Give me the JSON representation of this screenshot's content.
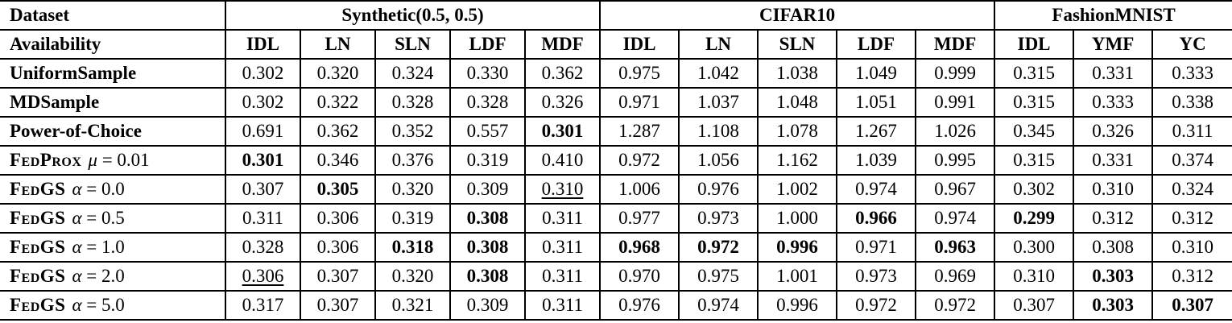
{
  "table": {
    "colors": {
      "border": "#000000",
      "text": "#000000",
      "background": "#ffffff"
    },
    "header": {
      "dataset_label": "Dataset",
      "availability_label": "Availability",
      "groups": [
        {
          "label": "Synthetic(0.5, 0.5)",
          "span": 5
        },
        {
          "label": "CIFAR10",
          "span": 5
        },
        {
          "label": "FashionMNIST",
          "span": 3
        }
      ],
      "sub_headers": [
        "IDL",
        "LN",
        "SLN",
        "LDF",
        "MDF",
        "IDL",
        "LN",
        "SLN",
        "LDF",
        "MDF",
        "IDL",
        "YMF",
        "YC"
      ]
    },
    "rows": [
      {
        "label": "UniformSample",
        "smallcaps": false,
        "math_sym": "",
        "math_val": "",
        "values": [
          "0.302",
          "0.320",
          "0.324",
          "0.330",
          "0.362",
          "0.975",
          "1.042",
          "1.038",
          "1.049",
          "0.999",
          "0.315",
          "0.331",
          "0.333"
        ],
        "styles": [
          "",
          "",
          "",
          "",
          "",
          "",
          "",
          "",
          "",
          "",
          "",
          "",
          ""
        ]
      },
      {
        "label": "MDSample",
        "smallcaps": false,
        "math_sym": "",
        "math_val": "",
        "values": [
          "0.302",
          "0.322",
          "0.328",
          "0.328",
          "0.326",
          "0.971",
          "1.037",
          "1.048",
          "1.051",
          "0.991",
          "0.315",
          "0.333",
          "0.338"
        ],
        "styles": [
          "",
          "",
          "",
          "",
          "",
          "",
          "",
          "",
          "",
          "",
          "",
          "",
          ""
        ]
      },
      {
        "label": "Power-of-Choice",
        "smallcaps": false,
        "math_sym": "",
        "math_val": "",
        "values": [
          "0.691",
          "0.362",
          "0.352",
          "0.557",
          "0.301",
          "1.287",
          "1.108",
          "1.078",
          "1.267",
          "1.026",
          "0.345",
          "0.326",
          "0.311"
        ],
        "styles": [
          "",
          "",
          "",
          "",
          "b",
          "",
          "",
          "",
          "",
          "",
          "",
          "",
          ""
        ]
      },
      {
        "label": "FedProx",
        "smallcaps": true,
        "math_sym": "μ",
        "math_val": "0.01",
        "values": [
          "0.301",
          "0.346",
          "0.376",
          "0.319",
          "0.410",
          "0.972",
          "1.056",
          "1.162",
          "1.039",
          "0.995",
          "0.315",
          "0.331",
          "0.374"
        ],
        "styles": [
          "b",
          "",
          "",
          "",
          "",
          "",
          "",
          "",
          "",
          "",
          "",
          "",
          ""
        ]
      },
      {
        "label": "FedGS",
        "smallcaps": true,
        "math_sym": "α",
        "math_val": "0.0",
        "values": [
          "0.307",
          "0.305",
          "0.320",
          "0.309",
          "0.310",
          "1.006",
          "0.976",
          "1.002",
          "0.974",
          "0.967",
          "0.302",
          "0.310",
          "0.324"
        ],
        "styles": [
          "",
          "b",
          "",
          "",
          "u",
          "",
          "",
          "",
          "",
          "",
          "",
          "",
          ""
        ]
      },
      {
        "label": "FedGS",
        "smallcaps": true,
        "math_sym": "α",
        "math_val": "0.5",
        "values": [
          "0.311",
          "0.306",
          "0.319",
          "0.308",
          "0.311",
          "0.977",
          "0.973",
          "1.000",
          "0.966",
          "0.974",
          "0.299",
          "0.312",
          "0.312"
        ],
        "styles": [
          "",
          "",
          "",
          "b",
          "",
          "",
          "",
          "",
          "b",
          "",
          "b",
          "",
          ""
        ]
      },
      {
        "label": "FedGS",
        "smallcaps": true,
        "math_sym": "α",
        "math_val": "1.0",
        "values": [
          "0.328",
          "0.306",
          "0.318",
          "0.308",
          "0.311",
          "0.968",
          "0.972",
          "0.996",
          "0.971",
          "0.963",
          "0.300",
          "0.308",
          "0.310"
        ],
        "styles": [
          "",
          "",
          "b",
          "b",
          "",
          "b",
          "b",
          "b",
          "",
          "b",
          "",
          "",
          ""
        ]
      },
      {
        "label": "FedGS",
        "smallcaps": true,
        "math_sym": "α",
        "math_val": "2.0",
        "values": [
          "0.306",
          "0.307",
          "0.320",
          "0.308",
          "0.311",
          "0.970",
          "0.975",
          "1.001",
          "0.973",
          "0.969",
          "0.310",
          "0.303",
          "0.312"
        ],
        "styles": [
          "u",
          "",
          "",
          "b",
          "",
          "",
          "",
          "",
          "",
          "",
          "",
          "b",
          ""
        ]
      },
      {
        "label": "FedGS",
        "smallcaps": true,
        "math_sym": "α",
        "math_val": "5.0",
        "values": [
          "0.317",
          "0.307",
          "0.321",
          "0.309",
          "0.311",
          "0.976",
          "0.974",
          "0.996",
          "0.972",
          "0.972",
          "0.307",
          "0.303",
          "0.307"
        ],
        "styles": [
          "",
          "",
          "",
          "",
          "",
          "",
          "",
          "",
          "",
          "",
          "",
          "b",
          "b"
        ]
      }
    ]
  }
}
